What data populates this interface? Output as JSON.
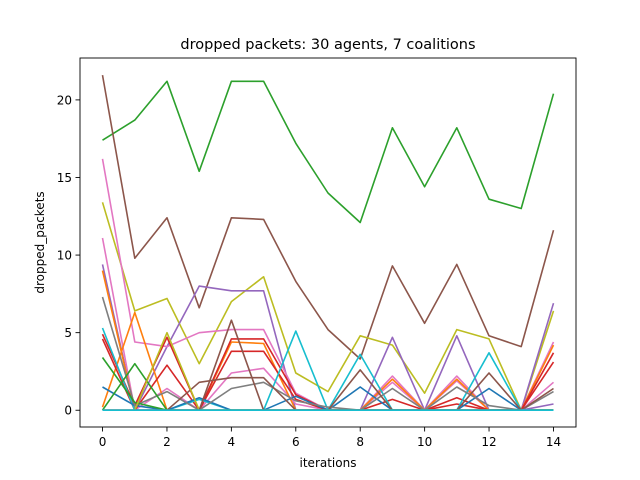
{
  "chart_data": {
    "type": "line",
    "title": "dropped packets: 30 agents, 7 coalitions",
    "xlabel": "iterations",
    "ylabel": "dropped_packets",
    "xlim": [
      -0.7,
      14.7
    ],
    "ylim": [
      -1.08,
      22.7
    ],
    "xticks": [
      0,
      2,
      4,
      6,
      8,
      10,
      12,
      14
    ],
    "yticks": [
      0,
      5,
      10,
      15,
      20
    ],
    "grid": false,
    "x": [
      0,
      1,
      2,
      3,
      4,
      5,
      6,
      7,
      8,
      9,
      10,
      11,
      12,
      13,
      14
    ],
    "series": [
      {
        "color": "#2ca02c",
        "values": [
          17.4,
          18.7,
          21.2,
          15.4,
          21.2,
          21.2,
          17.2,
          14.0,
          12.1,
          18.2,
          14.4,
          18.2,
          13.6,
          13.0,
          20.4
        ]
      },
      {
        "color": "#8c564b",
        "values": [
          21.6,
          9.8,
          12.4,
          6.6,
          12.4,
          12.3,
          8.3,
          5.2,
          3.3,
          9.3,
          5.6,
          9.4,
          4.8,
          4.1,
          11.6
        ]
      },
      {
        "color": "#bcbd22",
        "values": [
          13.4,
          6.4,
          7.2,
          3.0,
          7.0,
          8.6,
          2.4,
          1.2,
          4.8,
          4.2,
          1.1,
          5.2,
          4.6,
          0.0,
          6.4
        ]
      },
      {
        "color": "#9467bd",
        "values": [
          9.4,
          0.0,
          4.1,
          8.0,
          7.7,
          7.7,
          0.0,
          0.0,
          0.0,
          4.7,
          0.0,
          4.8,
          0.0,
          0.0,
          6.9
        ]
      },
      {
        "color": "#e377c2",
        "values": [
          16.2,
          4.4,
          4.1,
          5.0,
          5.2,
          5.2,
          1.1,
          0.0,
          0.0,
          2.2,
          0.0,
          2.2,
          0.0,
          0.0,
          4.4
        ]
      },
      {
        "color": "#e377c2",
        "values": [
          11.1,
          0.0,
          1.4,
          0.0,
          2.4,
          2.7,
          0.4,
          0.0,
          0.0,
          1.8,
          0.0,
          1.9,
          0.0,
          0.0,
          1.8
        ]
      },
      {
        "color": "#ff7f0e",
        "values": [
          9.0,
          0.0,
          0.0,
          0.0,
          4.4,
          4.3,
          0.0,
          0.0,
          0.0,
          2.0,
          0.0,
          2.0,
          0.0,
          0.0,
          4.2
        ]
      },
      {
        "color": "#ff7f0e",
        "values": [
          0.2,
          6.3,
          0.0,
          0.0,
          0.0,
          0.0,
          0.0,
          0.0,
          0.0,
          0.0,
          0.0,
          0.0,
          0.0,
          0.0,
          0.0
        ]
      },
      {
        "color": "#d62728",
        "values": [
          4.9,
          0.3,
          4.7,
          0.0,
          4.6,
          4.6,
          1.0,
          0.0,
          0.0,
          0.7,
          0.0,
          0.8,
          0.0,
          0.0,
          3.7
        ]
      },
      {
        "color": "#d62728",
        "values": [
          4.6,
          0.0,
          2.9,
          0.0,
          3.8,
          3.8,
          0.7,
          0.0,
          0.0,
          0.0,
          0.0,
          0.4,
          0.0,
          0.0,
          3.1
        ]
      },
      {
        "color": "#17becf",
        "values": [
          5.3,
          0.0,
          0.0,
          0.7,
          0.0,
          0.0,
          5.1,
          0.0,
          3.6,
          0.0,
          0.0,
          0.0,
          3.7,
          0.0,
          0.0
        ]
      },
      {
        "color": "#1f77b4",
        "values": [
          1.5,
          0.3,
          0.0,
          0.8,
          0.0,
          0.0,
          0.9,
          0.0,
          1.5,
          0.0,
          0.0,
          0.0,
          1.4,
          0.0,
          0.0
        ]
      },
      {
        "color": "#7f7f7f",
        "values": [
          7.3,
          0.3,
          1.2,
          0.0,
          1.4,
          1.8,
          0.6,
          0.2,
          0.0,
          1.4,
          0.0,
          1.5,
          0.3,
          0.0,
          1.2
        ]
      },
      {
        "color": "#8c564b",
        "values": [
          0.0,
          0.0,
          0.0,
          1.8,
          2.1,
          2.1,
          0.0,
          0.0,
          2.6,
          0.0,
          0.0,
          0.0,
          2.4,
          0.0,
          1.4
        ]
      },
      {
        "color": "#2ca02c",
        "values": [
          3.4,
          0.5,
          0.0,
          0.0,
          0.0,
          0.0,
          0.0,
          0.0,
          0.0,
          0.0,
          0.0,
          0.0,
          0.0,
          0.0,
          0.0
        ]
      },
      {
        "color": "#2ca02c",
        "values": [
          0.0,
          3.0,
          0.0,
          0.0,
          0.0,
          0.0,
          0.0,
          0.0,
          0.0,
          0.0,
          0.0,
          0.0,
          0.0,
          0.0,
          0.0
        ]
      },
      {
        "color": "#bcbd22",
        "values": [
          0.0,
          0.0,
          5.0,
          0.0,
          0.0,
          0.0,
          0.0,
          0.0,
          0.0,
          0.0,
          0.0,
          0.0,
          0.0,
          0.0,
          0.0
        ]
      },
      {
        "color": "#8c564b",
        "values": [
          0.0,
          0.0,
          0.0,
          0.0,
          5.8,
          0.0,
          0.0,
          0.0,
          0.0,
          0.0,
          0.0,
          0.0,
          0.0,
          0.0,
          0.0
        ]
      },
      {
        "color": "#9467bd",
        "values": [
          0.0,
          0.0,
          0.0,
          0.0,
          0.0,
          0.0,
          0.0,
          0.0,
          0.0,
          0.0,
          0.0,
          0.0,
          0.0,
          0.0,
          0.4
        ]
      },
      {
        "color": "#17becf",
        "values": [
          0.0,
          0.0,
          0.0,
          0.0,
          0.0,
          0.0,
          0.0,
          0.0,
          0.0,
          0.0,
          0.0,
          0.0,
          0.0,
          0.0,
          0.0
        ]
      }
    ]
  }
}
